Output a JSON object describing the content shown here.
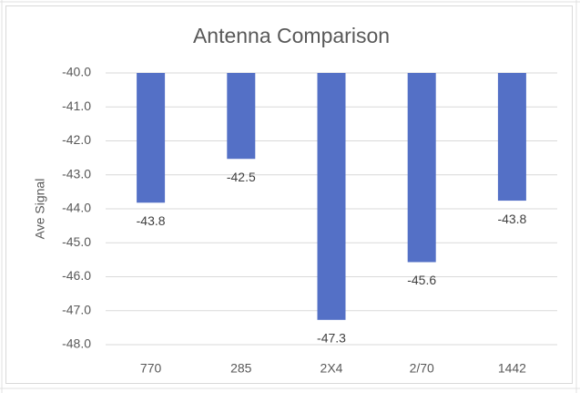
{
  "chart_data": {
    "type": "bar",
    "title": "Antenna Comparison",
    "y_label": "Ave Signal",
    "categories": [
      "770",
      "285",
      "2X4",
      "2/70",
      "1442"
    ],
    "values": [
      -43.82,
      -42.53,
      -47.27,
      -45.57,
      -43.76
    ],
    "value_labels": [
      "-43.8",
      "-42.5",
      "-47.3",
      "-45.6",
      "-43.8"
    ],
    "color": "#5470c6",
    "ylim": [
      -48,
      -40
    ],
    "yticks": [
      {
        "value": -48,
        "label": "-48.0"
      },
      {
        "value": -47,
        "label": "-47.0"
      },
      {
        "value": -46,
        "label": "-46.0"
      },
      {
        "value": -45,
        "label": "-45.0"
      },
      {
        "value": -44,
        "label": "-44.0"
      },
      {
        "value": -43,
        "label": "-43.0"
      },
      {
        "value": -42,
        "label": "-42.0"
      },
      {
        "value": -41,
        "label": "-41.0"
      },
      {
        "value": -40,
        "label": "-40.0"
      }
    ],
    "grid": true
  }
}
